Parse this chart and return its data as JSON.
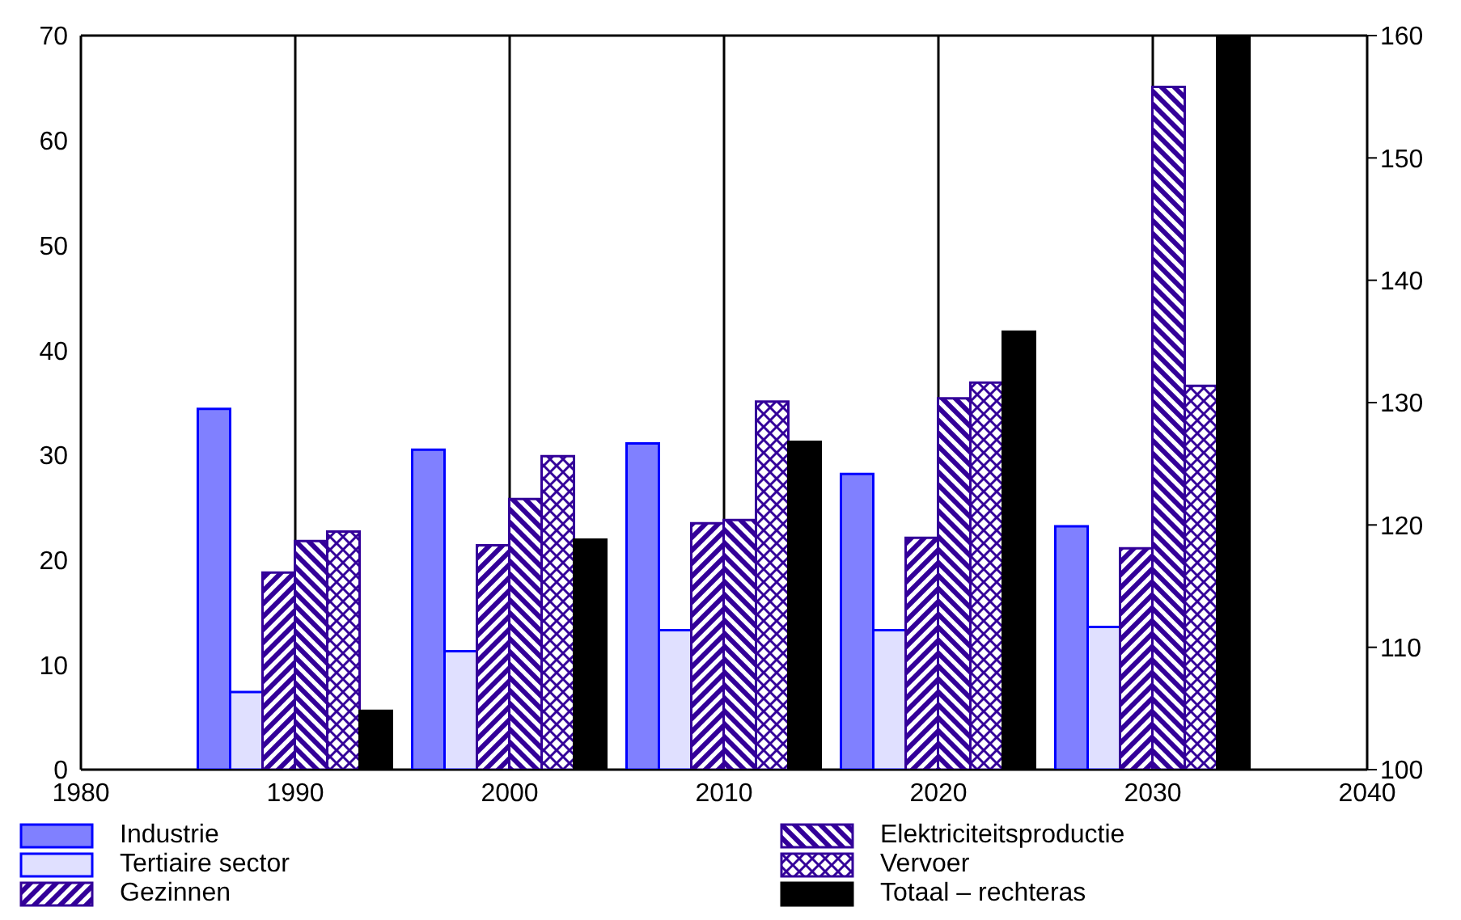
{
  "chart_data": {
    "type": "bar",
    "x": [
      1990,
      2000,
      2010,
      2020,
      2030
    ],
    "series": [
      {
        "name": "Industrie",
        "color": "#8080ff",
        "values": [
          34.4,
          30.5,
          31.1,
          28.2,
          23.2
        ]
      },
      {
        "name": "Tertiaire sector",
        "color": "#e0e0ff",
        "values": [
          7.4,
          11.3,
          13.3,
          13.3,
          13.6
        ]
      },
      {
        "name": "Gezinnen",
        "color": "#330099",
        "values": [
          18.8,
          21.4,
          23.5,
          22.1,
          21.1
        ]
      },
      {
        "name": "Elektriciteitsproductie",
        "color": "#330099",
        "values": [
          21.8,
          25.8,
          23.8,
          35.4,
          65.1
        ]
      },
      {
        "name": "Vervoer",
        "color": "#330099",
        "values": [
          22.7,
          29.9,
          35.1,
          36.9,
          36.6
        ]
      },
      {
        "name": "Totaal – rechteras",
        "color": "#000000",
        "axis": "y2",
        "values": [
          104.8,
          118.8,
          126.8,
          135.8,
          160
        ]
      }
    ],
    "xlim": [
      1980,
      2040
    ],
    "xticks": [
      1980,
      1990,
      2000,
      2010,
      2020,
      2030,
      2040
    ],
    "ylim": [
      0,
      70
    ],
    "yticks": [
      0,
      10,
      20,
      30,
      40,
      50,
      60,
      70
    ],
    "y2lim": [
      100,
      160
    ],
    "y2ticks": [
      100,
      110,
      120,
      130,
      140,
      150,
      160
    ],
    "grid": true,
    "legend": "bottom"
  }
}
